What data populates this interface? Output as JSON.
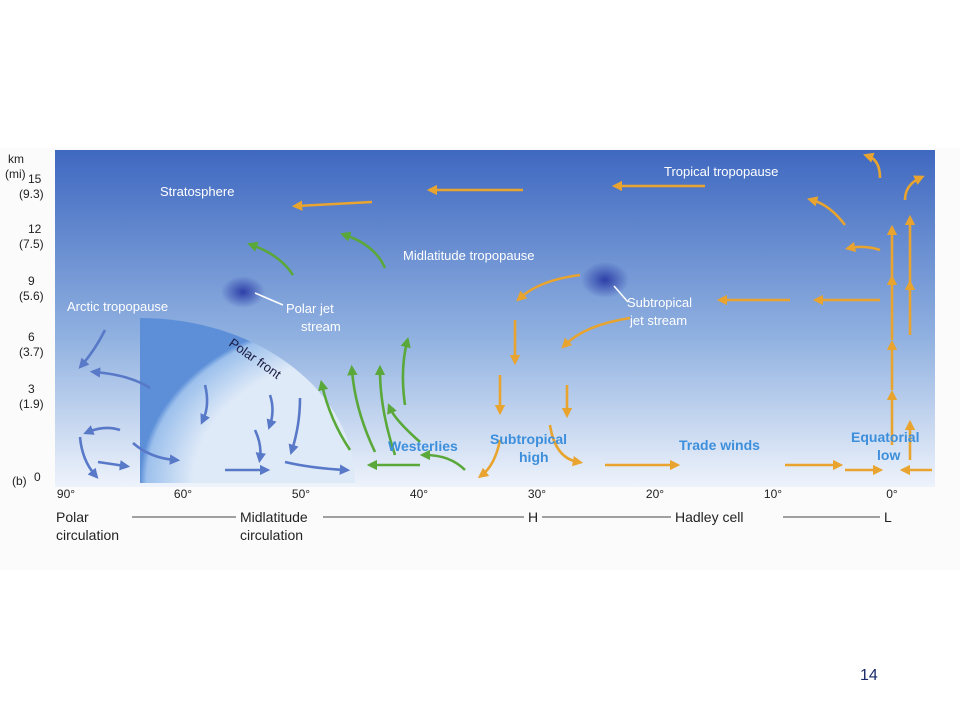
{
  "figure": {
    "panel": "(b)",
    "height_axis": {
      "unit": "km",
      "unit_alt": "(mi)",
      "ticks": [
        {
          "km": "15",
          "mi": "(9.3)"
        },
        {
          "km": "12",
          "mi": "(7.5)"
        },
        {
          "km": "9",
          "mi": "(5.6)"
        },
        {
          "km": "6",
          "mi": "(3.7)"
        },
        {
          "km": "3",
          "mi": "(1.9)"
        },
        {
          "km": "0"
        }
      ]
    },
    "latitudes": [
      "90°",
      "60°",
      "50°",
      "40°",
      "30°",
      "20°",
      "10°",
      "0°"
    ],
    "labels": {
      "stratosphere": "Stratosphere",
      "tropical_tropopause": "Tropical tropopause",
      "midlatitude_tropopause": "Midlatitude tropopause",
      "arctic_tropopause": "Arctic tropopause",
      "polar_jet": [
        "Polar jet",
        "stream"
      ],
      "polar_front": "Polar front",
      "subtropical_jet": [
        "Subtropical",
        "jet stream"
      ],
      "westerlies": "Westerlies",
      "subtropical_high": [
        "Subtropical",
        "high"
      ],
      "trade_winds": "Trade winds",
      "equatorial_low": [
        "Equatorial",
        "low"
      ]
    },
    "circulations": {
      "polar": [
        "Polar",
        "circulation"
      ],
      "midlatitude": [
        "Midlatitude",
        "circulation"
      ],
      "high": "H",
      "hadley": "Hadley cell",
      "low": "L"
    }
  },
  "page_number": "14"
}
